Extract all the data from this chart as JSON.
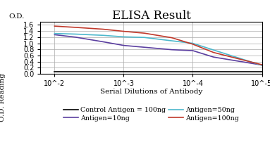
{
  "title": "ELISA Result",
  "xlabel": "Serial Dilutions of Antibody",
  "ylabel_top": "O.D.",
  "ylabel_side": "O.D. Reading",
  "ylim": [
    0,
    1.7
  ],
  "yticks": [
    0,
    0.2,
    0.4,
    0.6,
    0.8,
    1.0,
    1.2,
    1.4,
    1.6
  ],
  "xtick_positions": [
    0.01,
    0.001,
    0.0001,
    1e-05
  ],
  "lines": {
    "control": {
      "label": "Control Antigen = 100ng",
      "color": "#000000",
      "x": [
        0.01,
        0.003,
        0.001,
        0.0003,
        0.0001,
        3e-05,
        1e-05
      ],
      "y": [
        0.08,
        0.08,
        0.08,
        0.08,
        0.08,
        0.08,
        0.08
      ]
    },
    "antigen10": {
      "label": "Antigen=10ng",
      "color": "#5b3fa0",
      "x": [
        0.01,
        0.005,
        0.002,
        0.001,
        0.0005,
        0.0002,
        0.0001,
        5e-05,
        1e-05
      ],
      "y": [
        1.28,
        1.2,
        1.05,
        0.93,
        0.87,
        0.79,
        0.76,
        0.55,
        0.29
      ]
    },
    "antigen50": {
      "label": "Antigen=50ng",
      "color": "#4db8cc",
      "x": [
        0.01,
        0.005,
        0.002,
        0.001,
        0.0005,
        0.0002,
        0.0001,
        5e-05,
        1e-05
      ],
      "y": [
        1.32,
        1.3,
        1.26,
        1.21,
        1.19,
        1.08,
        1.0,
        0.78,
        0.28
      ]
    },
    "antigen100": {
      "label": "Antigen=100ng",
      "color": "#c0392b",
      "x": [
        0.01,
        0.005,
        0.002,
        0.001,
        0.0005,
        0.0002,
        0.0001,
        5e-05,
        1e-05
      ],
      "y": [
        1.56,
        1.52,
        1.46,
        1.39,
        1.33,
        1.18,
        0.97,
        0.7,
        0.3
      ]
    }
  },
  "legend_fontsize": 6.8,
  "title_fontsize": 12,
  "axis_label_fontsize": 7.5,
  "tick_fontsize": 7
}
